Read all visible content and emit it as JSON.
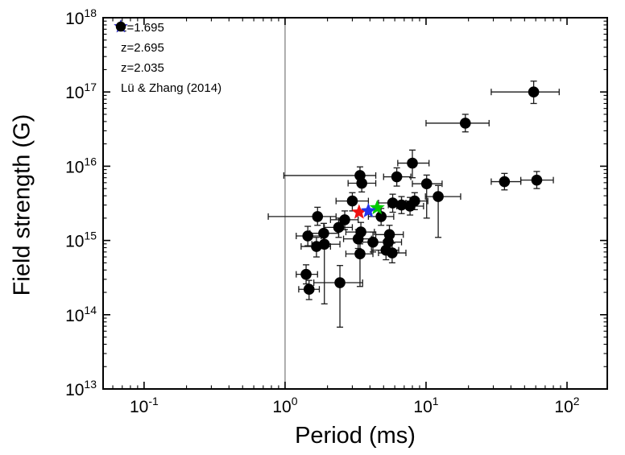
{
  "chart_data": {
    "type": "scatter",
    "title": "",
    "xlabel": "Period (ms)",
    "ylabel": "Field strength (G)",
    "x_scale": "log",
    "y_scale": "log",
    "xlim": [
      0.0512,
      193
    ],
    "ylim": [
      10000000000000.0,
      1e+18
    ],
    "x_tick_exponents": [
      -1,
      0,
      1,
      2
    ],
    "y_tick_exponents": [
      13,
      14,
      15,
      16,
      17,
      18
    ],
    "grid": false,
    "frame_color": "#000000",
    "background_color": "#ffffff",
    "reference_line": {
      "axis": "x",
      "value": 1.0,
      "color": "#8c8c8c"
    },
    "legend_position": "top-left",
    "series": [
      {
        "name": "z=1.695",
        "marker": "star",
        "color": "#00cc00",
        "points": [
          {
            "x": 4.5,
            "y": 2750000000000000.0
          }
        ]
      },
      {
        "name": "z=2.695",
        "marker": "star",
        "color": "#ee1111",
        "points": [
          {
            "x": 3.35,
            "y": 2400000000000000.0
          }
        ]
      },
      {
        "name": "z=2.035",
        "marker": "star",
        "color": "#2233ee",
        "points": [
          {
            "x": 3.9,
            "y": 2500000000000000.0
          }
        ]
      },
      {
        "name": "Lü & Zhang (2014)",
        "marker": "circle",
        "color": "#000000",
        "points": [
          {
            "x": 58,
            "y": 1e+17,
            "xlo": 29,
            "xhi": 88,
            "ylo": 7e+16,
            "yhi": 1.4e+17
          },
          {
            "x": 19,
            "y": 3.8e+16,
            "xlo": 10,
            "xhi": 28,
            "ylo": 2.9e+16,
            "yhi": 5e+16
          },
          {
            "x": 36,
            "y": 6200000000000000.0,
            "xlo": 29,
            "xhi": 47,
            "ylo": 4800000000000000.0,
            "yhi": 8000000000000000.0
          },
          {
            "x": 61,
            "y": 6500000000000000.0,
            "xlo": 47,
            "xhi": 80,
            "ylo": 5000000000000000.0,
            "yhi": 8500000000000000.0
          },
          {
            "x": 8.0,
            "y": 1.1e+16,
            "xlo": 6.3,
            "xhi": 10.5,
            "ylo": 7000000000000000.0,
            "yhi": 1.65e+16
          },
          {
            "x": 6.2,
            "y": 7200000000000000.0,
            "xlo": 5.0,
            "xhi": 7.8,
            "ylo": 5400000000000000.0,
            "yhi": 9500000000000000.0
          },
          {
            "x": 10.1,
            "y": 5800000000000000.0,
            "xlo": 8.0,
            "xhi": 13,
            "ylo": 2000000000000000.0,
            "yhi": 7600000000000000.0
          },
          {
            "x": 12.2,
            "y": 3900000000000000.0,
            "xlo": 9.9,
            "xhi": 17.6,
            "ylo": 1100000000000000.0,
            "yhi": 5500000000000000.0
          },
          {
            "x": 3.4,
            "y": 7500000000000000.0,
            "xlo": 0.98,
            "xhi": 4.4,
            "ylo": 5600000000000000.0,
            "yhi": 9800000000000000.0
          },
          {
            "x": 3.5,
            "y": 5900000000000000.0,
            "xlo": 2.8,
            "xhi": 4.4,
            "ylo": 4500000000000000.0,
            "yhi": 7600000000000000.0
          },
          {
            "x": 3.0,
            "y": 3400000000000000.0,
            "xlo": 2.3,
            "xhi": 3.9,
            "ylo": 2500000000000000.0,
            "yhi": 4400000000000000.0
          },
          {
            "x": 5.8,
            "y": 3200000000000000.0,
            "xlo": 4.6,
            "xhi": 7.2,
            "ylo": 2400000000000000.0,
            "yhi": 4200000000000000.0
          },
          {
            "x": 6.7,
            "y": 3000000000000000.0,
            "xlo": 5.4,
            "xhi": 8.3,
            "ylo": 2300000000000000.0,
            "yhi": 3900000000000000.0
          },
          {
            "x": 7.7,
            "y": 2900000000000000.0,
            "xlo": 6.2,
            "xhi": 9.6,
            "ylo": 2200000000000000.0,
            "yhi": 3800000000000000.0
          },
          {
            "x": 8.3,
            "y": 3400000000000000.0,
            "xlo": 6.7,
            "xhi": 10.3,
            "ylo": 2600000000000000.0,
            "yhi": 4400000000000000.0
          },
          {
            "x": 4.8,
            "y": 2100000000000000.0,
            "xlo": 3.9,
            "xhi": 5.9,
            "ylo": 1600000000000000.0,
            "yhi": 2700000000000000.0
          },
          {
            "x": 2.65,
            "y": 1900000000000000.0,
            "xlo": 2.1,
            "xhi": 3.3,
            "ylo": 1400000000000000.0,
            "yhi": 2500000000000000.0
          },
          {
            "x": 2.4,
            "y": 1500000000000000.0,
            "xlo": 1.9,
            "xhi": 3.0,
            "ylo": 1100000000000000.0,
            "yhi": 2000000000000000.0
          },
          {
            "x": 1.88,
            "y": 1250000000000000.0,
            "xlo": 1.5,
            "xhi": 2.4,
            "ylo": 900000000000000.0,
            "yhi": 1700000000000000.0
          },
          {
            "x": 1.45,
            "y": 1150000000000000.0,
            "xlo": 1.2,
            "xhi": 1.8,
            "ylo": 850000000000000.0,
            "yhi": 1550000000000000.0
          },
          {
            "x": 1.7,
            "y": 2100000000000000.0,
            "xlo": 0.76,
            "xhi": 2.3,
            "ylo": 1600000000000000.0,
            "yhi": 2800000000000000.0
          },
          {
            "x": 1.67,
            "y": 830000000000000.0,
            "xlo": 1.3,
            "xhi": 2.1,
            "ylo": 600000000000000.0,
            "yhi": 1100000000000000.0
          },
          {
            "x": 1.9,
            "y": 890000000000000.0,
            "xlo": 1.55,
            "xhi": 2.45,
            "ylo": 140000000000000.0,
            "yhi": 1200000000000000.0
          },
          {
            "x": 3.45,
            "y": 1300000000000000.0,
            "xlo": 2.7,
            "xhi": 4.3,
            "ylo": 950000000000000.0,
            "yhi": 1750000000000000.0
          },
          {
            "x": 3.3,
            "y": 1050000000000000.0,
            "xlo": 2.6,
            "xhi": 4.1,
            "ylo": 780000000000000.0,
            "yhi": 1400000000000000.0
          },
          {
            "x": 4.2,
            "y": 950000000000000.0,
            "xlo": 3.4,
            "xhi": 5.3,
            "ylo": 700000000000000.0,
            "yhi": 1300000000000000.0
          },
          {
            "x": 3.4,
            "y": 660000000000000.0,
            "xlo": 2.7,
            "xhi": 4.2,
            "ylo": 240000000000000.0,
            "yhi": 900000000000000.0
          },
          {
            "x": 5.5,
            "y": 1200000000000000.0,
            "xlo": 4.4,
            "xhi": 6.9,
            "ylo": 900000000000000.0,
            "yhi": 1600000000000000.0
          },
          {
            "x": 5.4,
            "y": 950000000000000.0,
            "xlo": 4.3,
            "xhi": 6.7,
            "ylo": 700000000000000.0,
            "yhi": 1300000000000000.0
          },
          {
            "x": 5.2,
            "y": 740000000000000.0,
            "xlo": 4.1,
            "xhi": 6.4,
            "ylo": 550000000000000.0,
            "yhi": 1000000000000000.0
          },
          {
            "x": 5.75,
            "y": 680000000000000.0,
            "xlo": 4.6,
            "xhi": 7.2,
            "ylo": 500000000000000.0,
            "yhi": 920000000000000.0
          },
          {
            "x": 1.41,
            "y": 350000000000000.0,
            "xlo": 1.2,
            "xhi": 1.7,
            "ylo": 260000000000000.0,
            "yhi": 470000000000000.0
          },
          {
            "x": 1.48,
            "y": 220000000000000.0,
            "xlo": 1.25,
            "xhi": 1.75,
            "ylo": 160000000000000.0,
            "yhi": 290000000000000.0
          },
          {
            "x": 2.45,
            "y": 270000000000000.0,
            "xlo": 1.6,
            "xhi": 3.55,
            "ylo": 68000000000000.0,
            "yhi": 460000000000000.0
          }
        ]
      }
    ]
  }
}
